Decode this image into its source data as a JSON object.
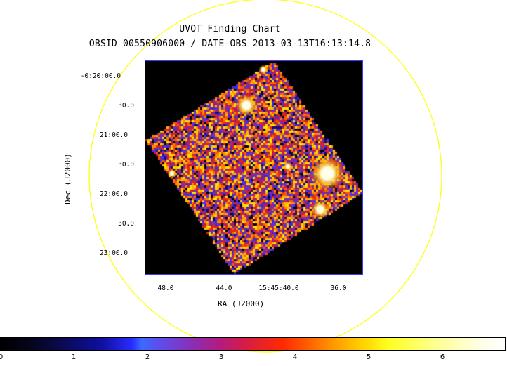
{
  "title": "UVOT Finding Chart",
  "subtitle": "OBSID 00550906000 / DATE-OBS 2013-03-13T16:13:14.8",
  "y_axis": {
    "title": "Dec (J2000)",
    "ticks": [
      "-0:20:00.0",
      "30.0",
      "21:00.0",
      "30.0",
      "22:00.0",
      "30.0",
      "23:00.0"
    ]
  },
  "x_axis": {
    "title": "RA (J2000)",
    "ticks": [
      "48.0",
      "44.0",
      "15:45:40.0",
      "36.0"
    ]
  },
  "colorbar": {
    "ticks": [
      "0",
      "1",
      "2",
      "3",
      "4",
      "5",
      "6"
    ]
  },
  "colors": {
    "circle": "#ffff00",
    "frame": "#3a3aff",
    "background": "#000000"
  }
}
